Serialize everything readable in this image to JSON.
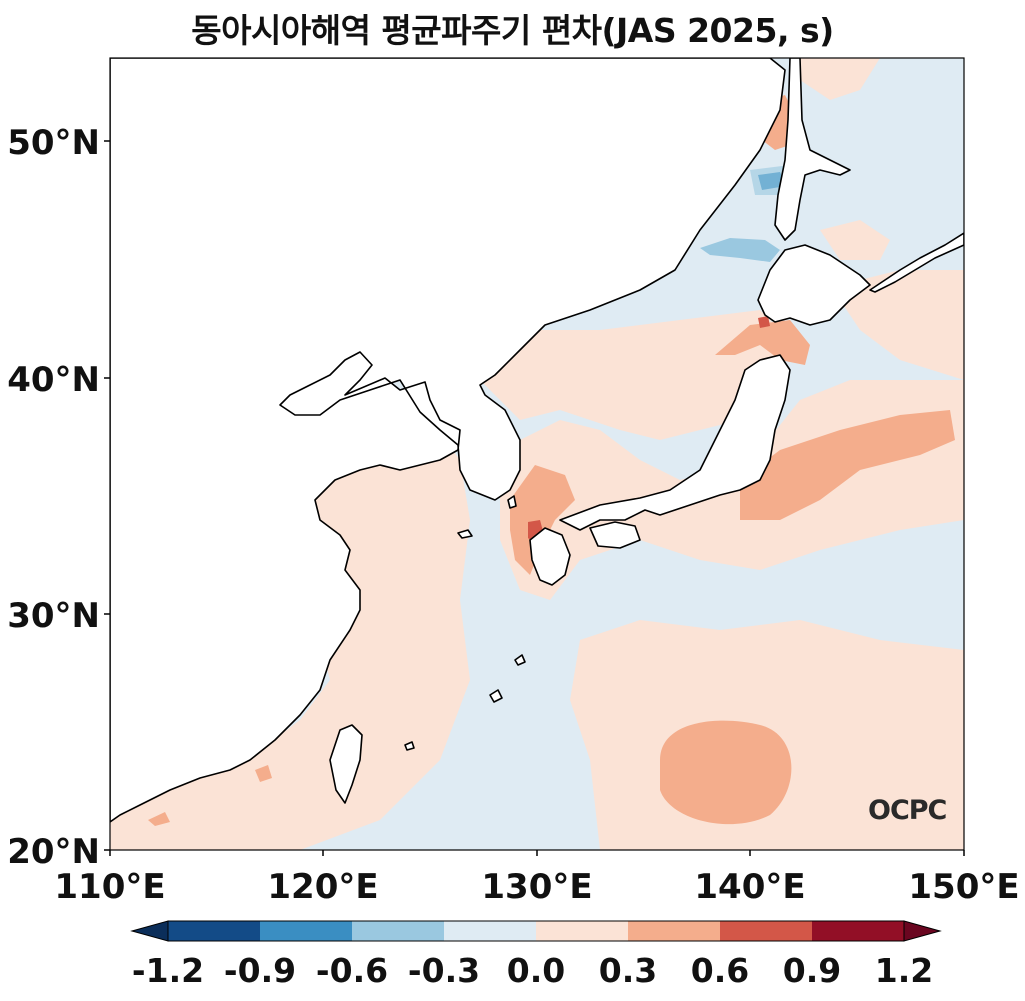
{
  "title": "동아시아해역 평균파주기 편차(JAS 2025, s)",
  "logo_text": "OCPC",
  "map": {
    "lon_range": [
      110,
      150
    ],
    "lat_range": [
      20,
      53.4
    ],
    "lat_ticks": [
      {
        "value": 20,
        "label": "20°N"
      },
      {
        "value": 30,
        "label": "30°N"
      },
      {
        "value": 40,
        "label": "40°N"
      },
      {
        "value": 50,
        "label": "50°N"
      }
    ],
    "lon_ticks": [
      {
        "value": 110,
        "label": "110°E"
      },
      {
        "value": 120,
        "label": "120°E"
      },
      {
        "value": 130,
        "label": "130°E"
      },
      {
        "value": 140,
        "label": "140°E"
      },
      {
        "value": 150,
        "label": "150°E"
      }
    ]
  },
  "colorbar": {
    "labels": [
      "-1.2",
      "-0.9",
      "-0.6",
      "-0.3",
      "0.0",
      "0.3",
      "0.6",
      "0.9",
      "1.2"
    ],
    "colors": [
      "#134b87",
      "#3a8ec2",
      "#9ac8e0",
      "#dfebf3",
      "#fbe3d6",
      "#f4ad8c",
      "#d35748",
      "#920f26"
    ],
    "extend_low": "#0b2e5a",
    "extend_high": "#6a0620"
  },
  "colors": {
    "ocean_base": "#dfebf3",
    "pos_light": "#fbe3d6",
    "pos_mid": "#f4ad8c",
    "pos_strong": "#d35748",
    "neg_mid": "#9ac8e0",
    "neg_strong": "#3a8ec2",
    "land": "#ffffff"
  }
}
